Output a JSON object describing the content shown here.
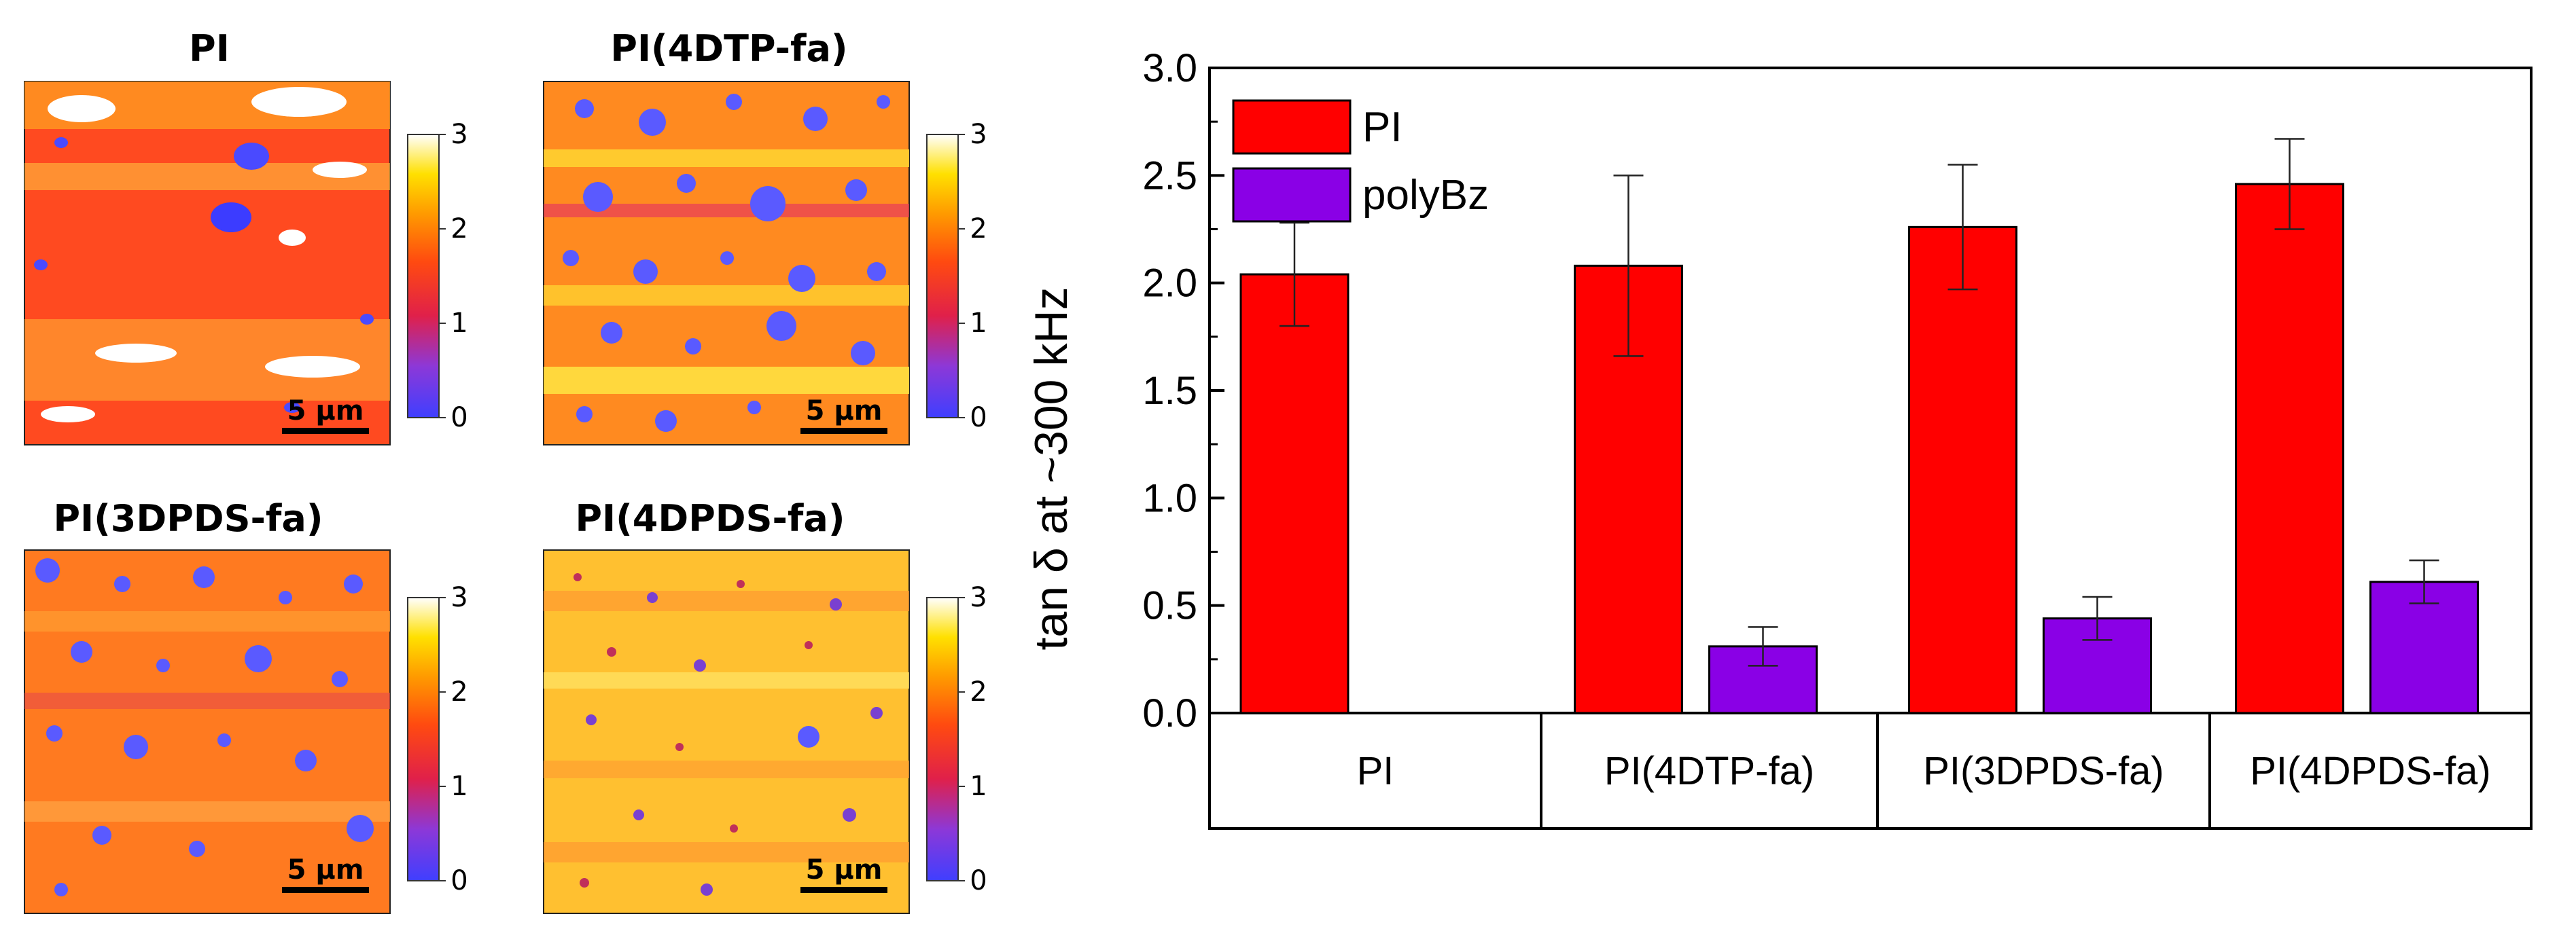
{
  "maps": {
    "panels": [
      {
        "title": "PI",
        "scalebar": "5 μm",
        "colorbar_ticks": [
          "0",
          "1",
          "2",
          "3"
        ],
        "style": "pi"
      },
      {
        "title": "PI(4DTP-fa)",
        "scalebar": "5 μm",
        "colorbar_ticks": [
          "0",
          "1",
          "2",
          "3"
        ],
        "style": "dtp"
      },
      {
        "title": "PI(3DPDS-fa)",
        "scalebar": "5 μm",
        "colorbar_ticks": [
          "0",
          "1",
          "2",
          "3"
        ],
        "style": "3dpds"
      },
      {
        "title": "PI(4DPDS-fa)",
        "scalebar": "5 μm",
        "colorbar_ticks": [
          "0",
          "1",
          "2",
          "3"
        ],
        "style": "4dpds"
      }
    ],
    "colorscale": [
      "#4a4aff",
      "#7a3ae0",
      "#e0204a",
      "#ff3a1a",
      "#ff8c00",
      "#ffd000",
      "#ffff80",
      "#ffffff"
    ]
  },
  "chart_data": {
    "type": "bar",
    "ylabel": "tan δ at ~300 kHz",
    "ylim": [
      0,
      3.0
    ],
    "yticks": [
      "0.0",
      "0.5",
      "1.0",
      "1.5",
      "2.0",
      "2.5",
      "3.0"
    ],
    "categories": [
      "PI",
      "PI(4DTP-fa)",
      "PI(3DPDS-fa)",
      "PI(4DPDS-fa)"
    ],
    "series": [
      {
        "name": "PI",
        "color": "#ff0000",
        "values": [
          2.04,
          2.08,
          2.26,
          2.46
        ],
        "errors": [
          0.24,
          0.42,
          0.29,
          0.21
        ]
      },
      {
        "name": "polyBz",
        "color": "#8a00e6",
        "values": [
          null,
          0.31,
          0.44,
          0.61
        ],
        "errors": [
          null,
          0.09,
          0.1,
          0.1
        ]
      }
    ],
    "legend": "top-left"
  }
}
